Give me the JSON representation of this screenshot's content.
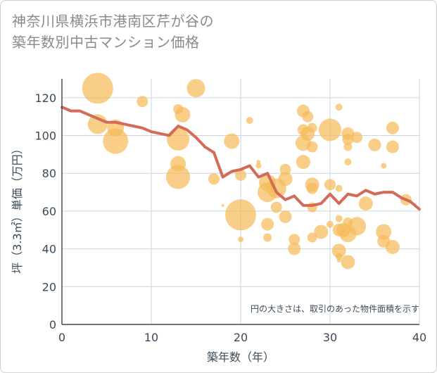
{
  "title_lines": [
    "神奈川県横浜市港南区芹が谷の",
    "築年数別中古マンション価格"
  ],
  "note": "円の大きさは、取引のあった物件面積を示す",
  "colors": {
    "bubble": "#f5bb5a",
    "line": "#d36b58",
    "grid": "#c9d6e0",
    "axis": "#3c4a57"
  },
  "chart_data": {
    "type": "scatter",
    "xlabel": "築年数（年）",
    "ylabel": "坪（3.3㎡）単価（万円）",
    "xlim": [
      0,
      40
    ],
    "ylim": [
      0,
      130
    ],
    "xticks": [
      0,
      10,
      20,
      30,
      40
    ],
    "yticks": [
      0,
      20,
      40,
      60,
      80,
      100,
      120
    ],
    "grid": true,
    "bubbles": [
      {
        "x": 4,
        "y": 125,
        "s": 22
      },
      {
        "x": 4,
        "y": 106,
        "s": 14
      },
      {
        "x": 6,
        "y": 104,
        "s": 12
      },
      {
        "x": 6,
        "y": 97,
        "s": 18
      },
      {
        "x": 9,
        "y": 118,
        "s": 8
      },
      {
        "x": 13,
        "y": 114,
        "s": 7
      },
      {
        "x": 13.5,
        "y": 111,
        "s": 11
      },
      {
        "x": 15,
        "y": 125,
        "s": 13
      },
      {
        "x": 13,
        "y": 98,
        "s": 16
      },
      {
        "x": 13,
        "y": 85,
        "s": 11
      },
      {
        "x": 13,
        "y": 78,
        "s": 17
      },
      {
        "x": 17,
        "y": 77,
        "s": 8
      },
      {
        "x": 19,
        "y": 97,
        "s": 11
      },
      {
        "x": 21,
        "y": 108,
        "s": 5
      },
      {
        "x": 20,
        "y": 79,
        "s": 8
      },
      {
        "x": 20,
        "y": 58,
        "s": 22
      },
      {
        "x": 20,
        "y": 45,
        "s": 4
      },
      {
        "x": 18,
        "y": 63,
        "s": 2
      },
      {
        "x": 22,
        "y": 86,
        "s": 3
      },
      {
        "x": 22,
        "y": 84,
        "s": 4
      },
      {
        "x": 23,
        "y": 75,
        "s": 12
      },
      {
        "x": 23,
        "y": 70,
        "s": 14
      },
      {
        "x": 24,
        "y": 72,
        "s": 14
      },
      {
        "x": 24,
        "y": 62,
        "s": 8
      },
      {
        "x": 25,
        "y": 82,
        "s": 8
      },
      {
        "x": 25,
        "y": 77,
        "s": 10
      },
      {
        "x": 25,
        "y": 57,
        "s": 9
      },
      {
        "x": 23,
        "y": 53,
        "s": 9
      },
      {
        "x": 23,
        "y": 46,
        "s": 6
      },
      {
        "x": 26,
        "y": 45,
        "s": 8
      },
      {
        "x": 26,
        "y": 40,
        "s": 9
      },
      {
        "x": 27,
        "y": 113,
        "s": 9
      },
      {
        "x": 27.5,
        "y": 110,
        "s": 8
      },
      {
        "x": 27,
        "y": 103,
        "s": 8
      },
      {
        "x": 27.5,
        "y": 101,
        "s": 10
      },
      {
        "x": 27,
        "y": 96,
        "s": 11
      },
      {
        "x": 28,
        "y": 104,
        "s": 7
      },
      {
        "x": 28,
        "y": 94,
        "s": 8
      },
      {
        "x": 27,
        "y": 86,
        "s": 10
      },
      {
        "x": 28,
        "y": 74,
        "s": 10
      },
      {
        "x": 28,
        "y": 72,
        "s": 8
      },
      {
        "x": 28,
        "y": 62,
        "s": 7
      },
      {
        "x": 28,
        "y": 46,
        "s": 7
      },
      {
        "x": 29,
        "y": 49,
        "s": 10
      },
      {
        "x": 30,
        "y": 103,
        "s": 16
      },
      {
        "x": 30,
        "y": 74,
        "s": 8
      },
      {
        "x": 30,
        "y": 53,
        "s": 5
      },
      {
        "x": 31,
        "y": 115,
        "s": 5
      },
      {
        "x": 31,
        "y": 72,
        "s": 5
      },
      {
        "x": 31,
        "y": 56,
        "s": 5
      },
      {
        "x": 31,
        "y": 50,
        "s": 9
      },
      {
        "x": 31.5,
        "y": 50,
        "s": 10
      },
      {
        "x": 32,
        "y": 54,
        "s": 7
      },
      {
        "x": 32,
        "y": 48,
        "s": 12
      },
      {
        "x": 31,
        "y": 39,
        "s": 10
      },
      {
        "x": 31,
        "y": 36,
        "s": 5
      },
      {
        "x": 31,
        "y": 34,
        "s": 3
      },
      {
        "x": 32,
        "y": 33,
        "s": 10
      },
      {
        "x": 32,
        "y": 101,
        "s": 9
      },
      {
        "x": 32,
        "y": 98,
        "s": 8
      },
      {
        "x": 32,
        "y": 94,
        "s": 6
      },
      {
        "x": 32,
        "y": 86,
        "s": 5
      },
      {
        "x": 33,
        "y": 99,
        "s": 8
      },
      {
        "x": 33,
        "y": 52,
        "s": 13
      },
      {
        "x": 34,
        "y": 64,
        "s": 10
      },
      {
        "x": 35,
        "y": 95,
        "s": 9
      },
      {
        "x": 36,
        "y": 84,
        "s": 4
      },
      {
        "x": 36,
        "y": 49,
        "s": 11
      },
      {
        "x": 36,
        "y": 44,
        "s": 9
      },
      {
        "x": 37,
        "y": 104,
        "s": 9
      },
      {
        "x": 37,
        "y": 94,
        "s": 9
      },
      {
        "x": 37,
        "y": 41,
        "s": 10
      },
      {
        "x": 38.5,
        "y": 66,
        "s": 8
      }
    ],
    "series": [
      {
        "type": "line",
        "x": [
          0,
          1,
          2,
          3,
          4,
          5,
          6,
          7,
          8,
          9,
          10,
          11,
          12,
          13,
          14,
          15,
          16,
          17,
          18,
          19,
          20,
          21,
          22,
          23,
          24,
          25,
          26,
          27,
          28,
          29,
          30,
          31,
          32,
          33,
          34,
          35,
          36,
          37,
          38,
          39,
          40
        ],
        "y": [
          115,
          113,
          113,
          111,
          109,
          107,
          107,
          106,
          105,
          104,
          102,
          101,
          100,
          105,
          103,
          99,
          94,
          91,
          78,
          81,
          82,
          84,
          78,
          80,
          70,
          66,
          68,
          63,
          63,
          64,
          69,
          64,
          69,
          68,
          71,
          69,
          70,
          70,
          67,
          65,
          61
        ]
      }
    ]
  }
}
